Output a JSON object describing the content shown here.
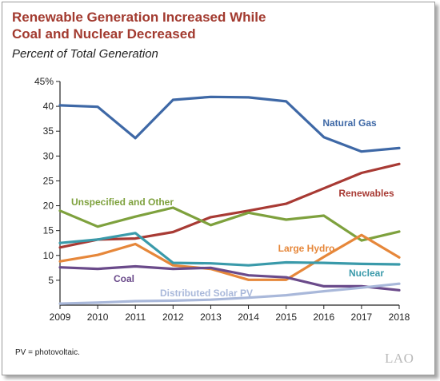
{
  "header": {
    "title_line1": "Renewable Generation Increased While",
    "title_line2": "Coal and Nuclear Decreased",
    "subtitle": "Percent of Total Generation"
  },
  "footnote": "PV = photovoltaic.",
  "logo": "LAO",
  "chart_data": {
    "type": "line",
    "x": [
      2009,
      2010,
      2011,
      2012,
      2013,
      2014,
      2015,
      2016,
      2017,
      2018
    ],
    "ylim": [
      0,
      45
    ],
    "yticks": [
      5,
      10,
      15,
      20,
      25,
      30,
      35,
      40,
      45
    ],
    "ytick_labels": [
      "5",
      "10",
      "15",
      "20",
      "25",
      "30",
      "35",
      "40",
      "45%"
    ],
    "grid": false,
    "legend": "inline labels",
    "series": [
      {
        "name": "Natural Gas",
        "color": "#3e68a6",
        "values": [
          40.2,
          39.9,
          33.6,
          41.3,
          41.9,
          41.8,
          41.0,
          33.8,
          30.9,
          31.6
        ]
      },
      {
        "name": "Renewables",
        "color": "#a83a34",
        "values": [
          11.6,
          13.2,
          13.4,
          14.7,
          17.7,
          19.0,
          20.4,
          23.5,
          26.6,
          28.4
        ]
      },
      {
        "name": "Unspecified and Other",
        "color": "#7ea13d",
        "values": [
          19.0,
          15.8,
          17.8,
          19.6,
          16.1,
          18.6,
          17.2,
          18.0,
          13.0,
          14.8
        ]
      },
      {
        "name": "Large Hydro",
        "color": "#e6873a",
        "values": [
          8.8,
          10.1,
          12.3,
          8.0,
          7.3,
          5.1,
          5.1,
          9.7,
          14.1,
          9.6
        ]
      },
      {
        "name": "Nuclear",
        "color": "#3a9aaa",
        "values": [
          12.5,
          13.2,
          14.5,
          8.5,
          8.4,
          8.0,
          8.6,
          8.5,
          8.3,
          8.2
        ]
      },
      {
        "name": "Coal",
        "color": "#6a4a8a",
        "values": [
          7.6,
          7.3,
          7.8,
          7.3,
          7.5,
          6.0,
          5.6,
          3.8,
          3.8,
          3.0
        ]
      },
      {
        "name": "Distributed Solar PV",
        "color": "#a9b8da",
        "values": [
          0.3,
          0.5,
          0.8,
          0.9,
          1.1,
          1.5,
          2.0,
          2.8,
          3.5,
          4.3
        ]
      }
    ]
  }
}
